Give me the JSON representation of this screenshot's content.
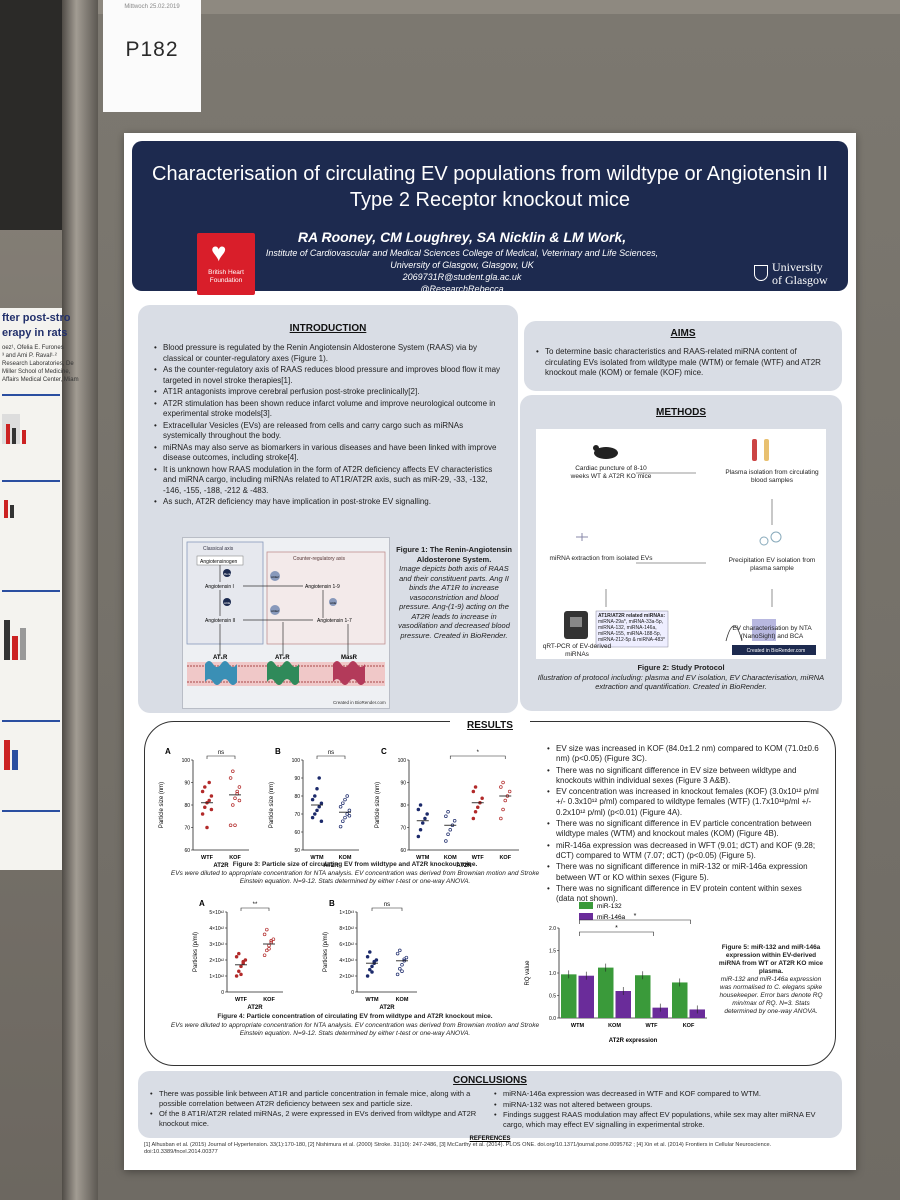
{
  "left_poster": {
    "title_lines": [
      "fter post-stro",
      "erapy in rats"
    ],
    "authors_line": "oez¹, Ofelia E. Furones",
    "authors_line2": "³ and Ami P. Raval¹·²",
    "affil_lines": [
      "Research Laboratories, De",
      "Miller School of Medicine,",
      "Affairs Medical Center, Miam"
    ]
  },
  "label_card": {
    "tiny_text": "Mittwoch 25.02.2019",
    "code": "P182"
  },
  "poster": {
    "title": "Characterisation of circulating EV populations from wildtype or Angiotensin II Type 2 Receptor knockout mice",
    "authors": "RA Rooney, CM Loughrey, SA Nicklin & LM Work,",
    "affiliation_lines": [
      "Institute of Cardiovascular and Medical Sciences College of Medical, Veterinary and Life Sciences,",
      "University of Glasgow, Glasgow, UK",
      "2069731R@student.gla.ac.uk",
      "@ResearchRebecca"
    ],
    "bhf_logo_text": "British Heart Foundation",
    "uog_logo_lines": [
      "University",
      "of Glasgow"
    ],
    "introduction": {
      "title": "INTRODUCTION",
      "bullets": [
        "Blood pressure is regulated by the Renin Angiotensin Aldosterone System (RAAS) via by classical or counter-regulatory axes (Figure 1).",
        "As the counter-regulatory axis of RAAS reduces blood pressure and improves blood flow it may targeted in novel stroke therapies[1].",
        "AT1R antagonists improve cerebral perfusion post-stroke preclinically[2].",
        "AT2R stimulation has been shown reduce infarct volume and improve neurological outcome in experimental stroke models[3].",
        "Extracellular Vesicles (EVs) are released from cells and carry cargo such as miRNAs systemically throughout the body.",
        "miRNAs may also serve as biomarkers in various diseases and have been linked with improve disease outcomes, including stroke[4].",
        "It is unknown how RAAS modulation in the form of AT2R deficiency affects EV characteristics and miRNA cargo, including miRNAs related to AT1R/AT2R axis, such as miR-29, -33, -132, -146, -155, -188, -212 & -483.",
        "As such, AT2R deficiency may have implication in post-stroke EV signalling."
      ],
      "figure_labels": {
        "classical": "Classical axis",
        "counter": "Counter-regulatory axis",
        "angiotensinogen": "Angiotensinogen",
        "renin": "Renin",
        "ang1": "Angiotensin I",
        "ang2": "Angiotensin II",
        "ace": "ACE",
        "ace2a": "ACE2",
        "ace2b": "ACE2",
        "ang19": "Angiotensin 1-9",
        "ang17": "Angiotensin 1-7",
        "ace_b": "ACE",
        "at1r": "AT1R",
        "at2r": "AT2R",
        "masr": "MasR",
        "created": "Created in BioRender.com"
      },
      "figure_caption_title": "Figure 1: The Renin-Angiotensin Aldosterone System.",
      "figure_caption": "Image depicts both axis of RAAS and their constituent parts. Ang II binds the AT1R to increase vasoconstriction and blood pressure. Ang-(1-9) acting on the AT2R leads to increase in vasodilation and decreased blood pressure. Created in BioRender."
    },
    "aims": {
      "title": "AIMS",
      "bullets": [
        "To determine basic characteristics and RAAS-related miRNA content of circulating EVs isolated from wildtype male (WTM) or female (WTF) and AT2R knockout male (KOM) or female (KOF) mice."
      ]
    },
    "methods": {
      "title": "METHODS",
      "steps": [
        "Cardiac puncture of 8-10 weeks WT & AT2R KO mice",
        "Plasma isolation from circulating blood samples",
        "miRNA extraction from isolated EVs",
        "Precipitation EV isolation from plasma sample",
        "qRT-PCR of EV-derived miRNAs",
        "EV characterisation by NTA (NanoSight) and BCA"
      ],
      "mirna_box_title": "AT1R/AT2R related miRNAs:",
      "mirna_box_lines": [
        "miRNA-29a*, miRNA-33a-5p,",
        "miRNA-132, miRNA-146a,",
        "miRNA-155, miRNA-188-5p,",
        "miRNA-212-5p & miRNA-483*"
      ],
      "created": "Created in BioRender.com",
      "caption_title": "Figure 2: Study Protocol",
      "caption": "Illustration of protocol including: plasma and EV isolation, EV Characterisation, miRNA extraction and quantification. Created in BioRender."
    },
    "results": {
      "title": "RESULTS",
      "fig3_caption_title": "Figure 3: Particle size of circulating EV from wildtype and AT2R knockout mice.",
      "fig3_caption": "EVs were diluted to appropriate concentration for NTA analysis. EV concentration was derived from Brownian motion and Stroke Einstein equation. N=9-12. Stats determined by either t-test or one-way ANOVA.",
      "fig4_caption_title": "Figure 4: Particle concentration of circulating EV from wildtype and AT2R knockout mice.",
      "fig4_caption": "EVs were diluted to appropriate concentration for NTA analysis. EV concentration was derived from Brownian motion and Stroke Einstein equation. N=9-12. Stats determined by either t-test or one-way ANOVA.",
      "fig5_caption_title": "Figure 5: miR-132 and miR-146a expression within EV-derived miRNA from WT or AT2R KO mice plasma.",
      "fig5_caption": "miR-132 and miR-146a expression was normalised to C. elegans spike housekeeper. Error bars denote RQ min/max of RQ. N=3. Stats determined by one-way ANOVA.",
      "bullets": [
        "EV size was increased in KOF (84.0±1.2 nm) compared to KOM (71.0±0.6 nm) (p<0.05) (Figure 3C).",
        "There was no significant difference in EV size between wildtype and knockouts within individual sexes (Figure 3 A&B).",
        "EV concentration was increased in knockout females (KOF) (3.0x10¹² p/ml +/- 0.3x10¹² p/ml) compared to wildtype females (WTF) (1.7x10¹²p/ml +/- 0.2x10¹² p/ml) (p<0.01) (Figure 4A).",
        "There was no significant difference in EV particle concentration between wildtype males (WTM) and knockout males (KOM) (Figure 4B).",
        "miR-146a expression was decreased in WFT (9.01; dCT) and KOF (9.28; dCT) compared to WTM (7.07; dCT) (p<0.05) (Figure 5).",
        "There was no significant difference in miR-132 or miR-146a expression between WT or KO within sexes (Figure 5).",
        "There was no significant difference in EV protein content within sexes (data not shown)."
      ]
    },
    "conclusions": {
      "title": "CONCLUSIONS",
      "left_bullets": [
        "There was possible link between AT1R and particle concentration in female mice, along with a possible correlation between AT2R deficiency between sex and particle size.",
        "Of the 8 AT1R/AT2R related miRNAs, 2 were expressed in EVs derived from wildtype and AT2R knockout mice."
      ],
      "right_bullets": [
        "miRNA-146a expression was decreased in WTF and KOF compared to WTM.",
        "miRNA-132 was not altered between groups.",
        "Findings suggest RAAS modulation may affect EV populations, while sex may alter miRNA EV cargo, which may effect EV signalling in experimental stroke."
      ]
    },
    "references": {
      "title": "REFERENCES",
      "text": "[1] Alhusban et al. (2015) Journal of Hypertension. 33(1):170-180, [2] Nishimura et al. (2000) Stroke. 31(10): 247-2486, [3] McCarthy et al. (2014). PLOS ONE. doi.org/10.1371/journal.pone.0095762 ; [4] Xin et al. (2014) Frontiers in Cellular Neuroscience. doi:10.3389/fncel.2014.00377"
    }
  },
  "chart_data": [
    {
      "type": "scatter",
      "panel": "3A",
      "xlabel": "AT2R",
      "ylabel": "Particle size (nm)",
      "ylim": [
        60,
        100
      ],
      "yticks": [
        "60",
        "70",
        "80",
        "90",
        "100"
      ],
      "categories": [
        "WTF",
        "KOF"
      ],
      "means": [
        81,
        84.5
      ],
      "annotation": "ns",
      "color": "#b22a2a",
      "points": [
        [
          76,
          79,
          81,
          82,
          84,
          86,
          88,
          70,
          90,
          78
        ],
        [
          71,
          80,
          83,
          85,
          88,
          92,
          95,
          71,
          86,
          82
        ]
      ]
    },
    {
      "type": "scatter",
      "panel": "3B",
      "xlabel": "AT2R",
      "ylabel": "Particle size (nm)",
      "ylim": [
        50,
        100
      ],
      "yticks": [
        "50",
        "60",
        "70",
        "80",
        "90",
        "100"
      ],
      "categories": [
        "WTM",
        "KOM"
      ],
      "means": [
        75,
        71
      ],
      "annotation": "ns",
      "color": "#1c2a6b",
      "points": [
        [
          68,
          70,
          72,
          74,
          76,
          78,
          80,
          84,
          90,
          66
        ],
        [
          63,
          66,
          68,
          70,
          72,
          74,
          76,
          78,
          80,
          69
        ]
      ]
    },
    {
      "type": "scatter",
      "panel": "3C",
      "xlabel": "AT2R",
      "ylabel": "Particle size (nm)",
      "ylim": [
        60,
        100
      ],
      "yticks": [
        "60",
        "70",
        "80",
        "90",
        "100"
      ],
      "categories": [
        "WTM",
        "KOM",
        "WTF",
        "KOF"
      ],
      "means": [
        73,
        71,
        81,
        84
      ],
      "annotation": "*",
      "colors": [
        "#1c2a6b",
        "#1c2a6b",
        "#b22a2a",
        "#b22a2a"
      ],
      "points": [
        [
          66,
          69,
          72,
          74,
          76,
          78,
          80
        ],
        [
          64,
          67,
          69,
          71,
          73,
          75,
          77
        ],
        [
          74,
          77,
          79,
          81,
          83,
          86,
          88
        ],
        [
          74,
          78,
          82,
          84,
          86,
          88,
          90
        ]
      ]
    },
    {
      "type": "scatter",
      "panel": "4A",
      "xlabel": "AT2R",
      "ylabel": "Particles (p/ml)",
      "ylim": [
        0,
        5
      ],
      "yticks": [
        "0",
        "1×10¹²",
        "2×10¹²",
        "3×10¹²",
        "4×10¹²",
        "5×10¹²"
      ],
      "categories": [
        "WTF",
        "KOF"
      ],
      "means": [
        1.7,
        3.0
      ],
      "annotation": "**",
      "color": "#b22a2a",
      "points": [
        [
          1.0,
          1.3,
          1.6,
          1.8,
          2.0,
          2.2,
          2.4,
          1.1,
          1.9
        ],
        [
          2.3,
          2.6,
          2.9,
          3.1,
          3.3,
          3.6,
          3.9,
          2.7,
          3.2
        ]
      ]
    },
    {
      "type": "scatter",
      "panel": "4B",
      "xlabel": "AT2R",
      "ylabel": "Particles (p/ml)",
      "ylim": [
        0,
        10
      ],
      "yticks": [
        "0",
        "2×10¹²",
        "4×10¹²",
        "6×10¹²",
        "8×10¹²",
        "1×10¹³"
      ],
      "categories": [
        "WTM",
        "KOM"
      ],
      "means": [
        3.6,
        3.9
      ],
      "annotation": "ns",
      "color": "#1c2a6b",
      "points": [
        [
          2.0,
          2.8,
          3.2,
          3.6,
          4.0,
          4.4,
          5.0,
          2.5,
          3.8
        ],
        [
          2.2,
          2.9,
          3.4,
          3.9,
          4.3,
          4.8,
          5.2,
          2.6,
          4.1
        ]
      ]
    },
    {
      "type": "bar",
      "panel": "5",
      "xlabel": "AT2R expression",
      "ylabel": "RQ value",
      "ylim": [
        0,
        2
      ],
      "yticks": [
        "0.0",
        "0.5",
        "1.0",
        "1.5",
        "2.0"
      ],
      "categories": [
        "WTM",
        "KOM",
        "WTF",
        "KOF"
      ],
      "series": [
        {
          "name": "miR-132",
          "color": "#3a9a3a",
          "values": [
            0.97,
            1.12,
            0.95,
            0.79
          ]
        },
        {
          "name": "miR-146a",
          "color": "#6a2c9a",
          "values": [
            0.94,
            0.6,
            0.23,
            0.19
          ]
        }
      ],
      "annotation": "*"
    }
  ]
}
